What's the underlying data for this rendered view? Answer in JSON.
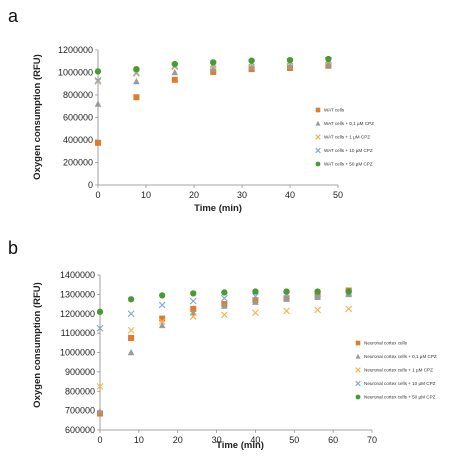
{
  "chart_data": [
    {
      "panel": "a",
      "type": "scatter",
      "xlabel": "Time (min)",
      "ylabel": "Oxygen consumption (RFU)",
      "xlim": [
        0,
        50
      ],
      "ylim": [
        0,
        1200000
      ],
      "xticks": [
        "0",
        "10",
        "20",
        "30",
        "40",
        "50"
      ],
      "yticks": [
        "0",
        "200000",
        "400000",
        "600000",
        "800000",
        "1000000",
        "1200000"
      ],
      "legend_position": "right",
      "series": [
        {
          "name": "WAT cells",
          "marker": "square",
          "color": "#e07b28",
          "x": [
            0,
            8,
            16,
            24,
            32,
            40,
            48
          ],
          "y": [
            375000,
            780000,
            935000,
            1005000,
            1030000,
            1040000,
            1060000
          ]
        },
        {
          "name": "WAT cells + 0,1 µM CPZ",
          "marker": "triangle",
          "color": "#9a9a9a",
          "x": [
            0,
            8,
            16,
            24,
            32,
            40,
            48
          ],
          "y": [
            720000,
            920000,
            1000000,
            1030000,
            1045000,
            1055000,
            1070000
          ]
        },
        {
          "name": "WAT cells + 1 µM CPZ",
          "marker": "x",
          "color": "#f2b24a",
          "x": [
            0,
            8,
            16,
            24,
            32,
            40,
            48
          ],
          "y": [
            920000,
            990000,
            1050000,
            1060000,
            1080000,
            1090000,
            1100000
          ]
        },
        {
          "name": "WAT cells + 10 µM CPZ",
          "marker": "x",
          "color": "#7aa6d9",
          "x": [
            0,
            8,
            16,
            24,
            32,
            40,
            48
          ],
          "y": [
            930000,
            1000000,
            1060000,
            1075000,
            1090000,
            1100000,
            1110000
          ]
        },
        {
          "name": "WAT cells + 50 µM CPZ",
          "marker": "circle",
          "color": "#4a9a32",
          "x": [
            0,
            8,
            16,
            24,
            32,
            40,
            48
          ],
          "y": [
            1010000,
            1030000,
            1075000,
            1090000,
            1105000,
            1110000,
            1120000
          ]
        }
      ]
    },
    {
      "panel": "b",
      "type": "scatter",
      "xlabel": "Time (min)",
      "ylabel": "Oxygen consumption (RFU)",
      "xlim": [
        0,
        70
      ],
      "ylim": [
        600000,
        1400000
      ],
      "xticks": [
        "0",
        "10",
        "20",
        "30",
        "40",
        "50",
        "60",
        "70"
      ],
      "yticks": [
        "600000",
        "700000",
        "800000",
        "900000",
        "1000000",
        "1100000",
        "1200000",
        "1300000",
        "1400000"
      ],
      "legend_position": "right",
      "series": [
        {
          "name": "Neuronal cortex cells",
          "marker": "square",
          "color": "#e07b28",
          "x": [
            0,
            8,
            16,
            24,
            32,
            40,
            48,
            56,
            64
          ],
          "y": [
            685000,
            1075000,
            1175000,
            1225000,
            1250000,
            1270000,
            1280000,
            1295000,
            1320000
          ]
        },
        {
          "name": "Neuronal cortex cells + 0,1 µM CPZ",
          "marker": "triangle",
          "color": "#9a9a9a",
          "x": [
            0,
            8,
            16,
            24,
            32,
            40,
            48,
            56,
            64
          ],
          "y": [
            695000,
            1000000,
            1140000,
            1205000,
            1240000,
            1260000,
            1275000,
            1285000,
            1300000
          ]
        },
        {
          "name": "Neuronal cortex cells + 1 µM CPZ",
          "marker": "x",
          "color": "#f2b24a",
          "x": [
            0,
            8,
            16,
            24,
            32,
            40,
            48,
            56,
            64
          ],
          "y": [
            825000,
            1115000,
            1160000,
            1185000,
            1195000,
            1205000,
            1215000,
            1220000,
            1225000
          ]
        },
        {
          "name": "Neuronal cortex cells + 10 µM CPZ",
          "marker": "x",
          "color": "#7aa6d9",
          "x": [
            0,
            8,
            16,
            24,
            32,
            40,
            48,
            56,
            64
          ],
          "y": [
            1125000,
            1200000,
            1245000,
            1265000,
            1280000,
            1290000,
            1295000,
            1300000,
            1310000
          ]
        },
        {
          "name": "Neuronal cortex cells + 50 µM CPZ",
          "marker": "circle",
          "color": "#4a9a32",
          "x": [
            0,
            8,
            16,
            24,
            32,
            40,
            48,
            56,
            64
          ],
          "y": [
            1210000,
            1275000,
            1295000,
            1305000,
            1310000,
            1315000,
            1315000,
            1315000,
            1315000
          ]
        }
      ]
    }
  ]
}
